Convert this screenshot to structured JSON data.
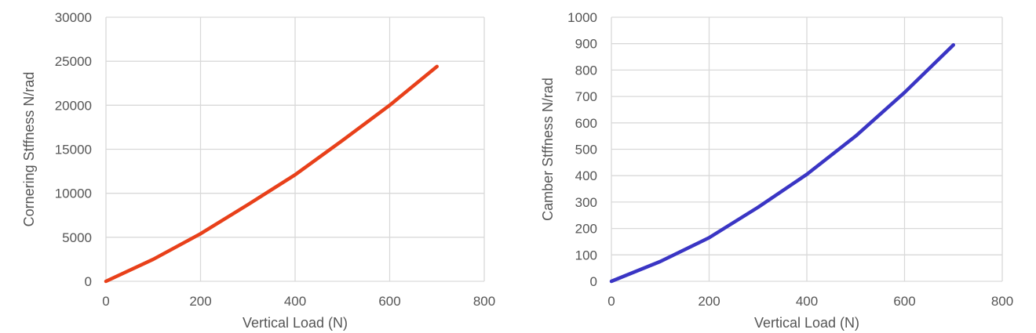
{
  "chart_data": [
    {
      "type": "line",
      "title": "",
      "xlabel": "Vertical Load (N)",
      "ylabel": "Cornering Stffness N/rad",
      "xlim": [
        0,
        800
      ],
      "ylim": [
        0,
        30000
      ],
      "x_ticks": [
        "0",
        "200",
        "400",
        "600",
        "800"
      ],
      "y_ticks": [
        "0",
        "5000",
        "10000",
        "15000",
        "20000",
        "25000",
        "30000"
      ],
      "grid": true,
      "legend": "none",
      "series": [
        {
          "color": "#e8401a",
          "x": [
            0,
            100,
            200,
            300,
            400,
            500,
            600,
            700
          ],
          "y": [
            0,
            2500,
            5400,
            8700,
            12100,
            16000,
            20000,
            24400
          ]
        }
      ]
    },
    {
      "type": "line",
      "title": "",
      "xlabel": "Vertical Load (N)",
      "ylabel": "Camber Stffness N/rad",
      "xlim": [
        0,
        800
      ],
      "ylim": [
        0,
        1000
      ],
      "x_ticks": [
        "0",
        "200",
        "400",
        "600",
        "800"
      ],
      "y_ticks": [
        "0",
        "100",
        "200",
        "300",
        "400",
        "500",
        "600",
        "700",
        "800",
        "900",
        "1000"
      ],
      "grid": true,
      "legend": "none",
      "series": [
        {
          "color": "#3a35c4",
          "x": [
            0,
            100,
            200,
            300,
            400,
            500,
            600,
            700
          ],
          "y": [
            0,
            75,
            165,
            280,
            405,
            550,
            715,
            895
          ]
        }
      ]
    }
  ]
}
